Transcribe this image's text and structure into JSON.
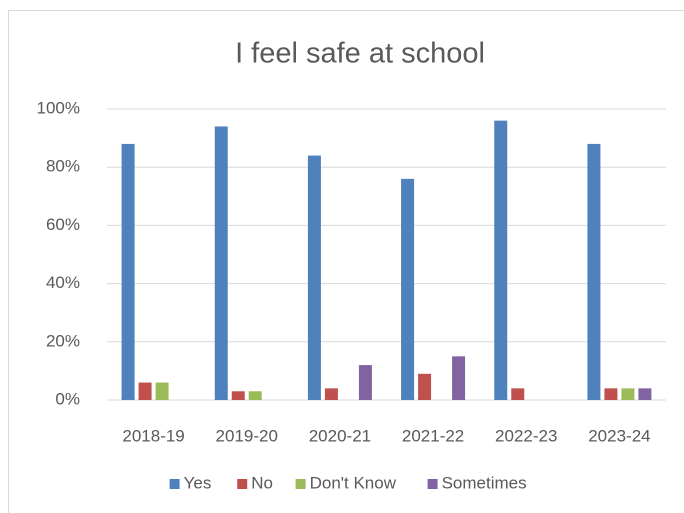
{
  "chart_data": {
    "type": "bar",
    "title": "I feel safe at school",
    "categories": [
      "2018-19",
      "2019-20",
      "2020-21",
      "2021-22",
      "2022-23",
      "2023-24"
    ],
    "series": [
      {
        "name": "Yes",
        "color": "#4f81bd",
        "values": [
          88,
          94,
          84,
          76,
          96,
          88
        ]
      },
      {
        "name": "No",
        "color": "#c0504d",
        "values": [
          6,
          3,
          4,
          9,
          4,
          4
        ]
      },
      {
        "name": "Don't Know",
        "color": "#9bbb59",
        "values": [
          6,
          3,
          0,
          0,
          0,
          4
        ]
      },
      {
        "name": "Sometimes",
        "color": "#8064a2",
        "values": [
          0,
          0,
          12,
          15,
          0,
          4
        ]
      }
    ],
    "ylim": [
      0,
      100
    ],
    "yticks": [
      {
        "value": 0,
        "label": "0%"
      },
      {
        "value": 20,
        "label": "20%"
      },
      {
        "value": 40,
        "label": "40%"
      },
      {
        "value": 60,
        "label": "60%"
      },
      {
        "value": 80,
        "label": "80%"
      },
      {
        "value": 100,
        "label": "100%"
      }
    ],
    "grid": true,
    "legend": "bottom"
  }
}
